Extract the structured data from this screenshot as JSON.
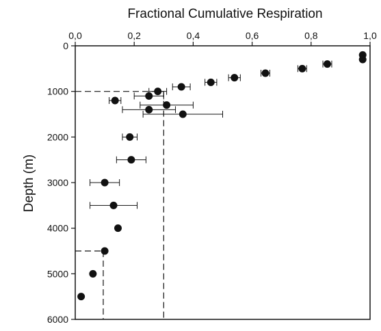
{
  "chart_data": {
    "type": "scatter",
    "title": "",
    "xlabel": "Fractional Cumulative Respiration",
    "ylabel": "Depth (m)",
    "xlim": [
      0,
      1.0
    ],
    "ylim": [
      6000,
      0
    ],
    "x_axis_position": "top",
    "y_axis_inverted": true,
    "grid": false,
    "legend": "none",
    "x_ticks": [
      0.0,
      0.2,
      0.4,
      0.6,
      0.8,
      1.0
    ],
    "x_tick_labels": [
      "0,0",
      "0,2",
      "0,4",
      "0,6",
      "0,8",
      "1,0"
    ],
    "y_ticks": [
      0,
      1000,
      2000,
      3000,
      4000,
      5000,
      6000
    ],
    "y_tick_labels": [
      "0",
      "1000",
      "2000",
      "3000",
      "4000",
      "5000",
      "6000"
    ],
    "marker_color": "#111111",
    "points": [
      {
        "depth": 200,
        "x": 0.975,
        "xerr": 0.0
      },
      {
        "depth": 300,
        "x": 0.975,
        "xerr": 0.0
      },
      {
        "depth": 400,
        "x": 0.855,
        "xerr": 0.015
      },
      {
        "depth": 500,
        "x": 0.77,
        "xerr": 0.015
      },
      {
        "depth": 600,
        "x": 0.645,
        "xerr": 0.015
      },
      {
        "depth": 700,
        "x": 0.54,
        "xerr": 0.02
      },
      {
        "depth": 800,
        "x": 0.46,
        "xerr": 0.02
      },
      {
        "depth": 900,
        "x": 0.36,
        "xerr": 0.03
      },
      {
        "depth": 1000,
        "x": 0.28,
        "xerr": 0.03
      },
      {
        "depth": 1100,
        "x": 0.25,
        "xerr": 0.05
      },
      {
        "depth": 1200,
        "x": 0.135,
        "xerr": 0.02
      },
      {
        "depth": 1300,
        "x": 0.31,
        "xerr": 0.09
      },
      {
        "depth": 1400,
        "x": 0.25,
        "xerr": 0.09
      },
      {
        "depth": 1500,
        "x": 0.365,
        "xerr": 0.135
      },
      {
        "depth": 2000,
        "x": 0.185,
        "xerr": 0.025
      },
      {
        "depth": 2500,
        "x": 0.19,
        "xerr": 0.05
      },
      {
        "depth": 3000,
        "x": 0.1,
        "xerr": 0.05
      },
      {
        "depth": 3500,
        "x": 0.13,
        "xerr": 0.08
      },
      {
        "depth": 4000,
        "x": 0.145,
        "xerr": 0.0
      },
      {
        "depth": 4500,
        "x": 0.1,
        "xerr": 0.0
      },
      {
        "depth": 5000,
        "x": 0.06,
        "xerr": 0.0
      },
      {
        "depth": 5500,
        "x": 0.02,
        "xerr": 0.0
      }
    ],
    "reference_lines": [
      {
        "name": "ref-1000m",
        "depth": 1000,
        "x": 0.3
      },
      {
        "name": "ref-4500m",
        "depth": 4500,
        "x": 0.095
      }
    ]
  }
}
